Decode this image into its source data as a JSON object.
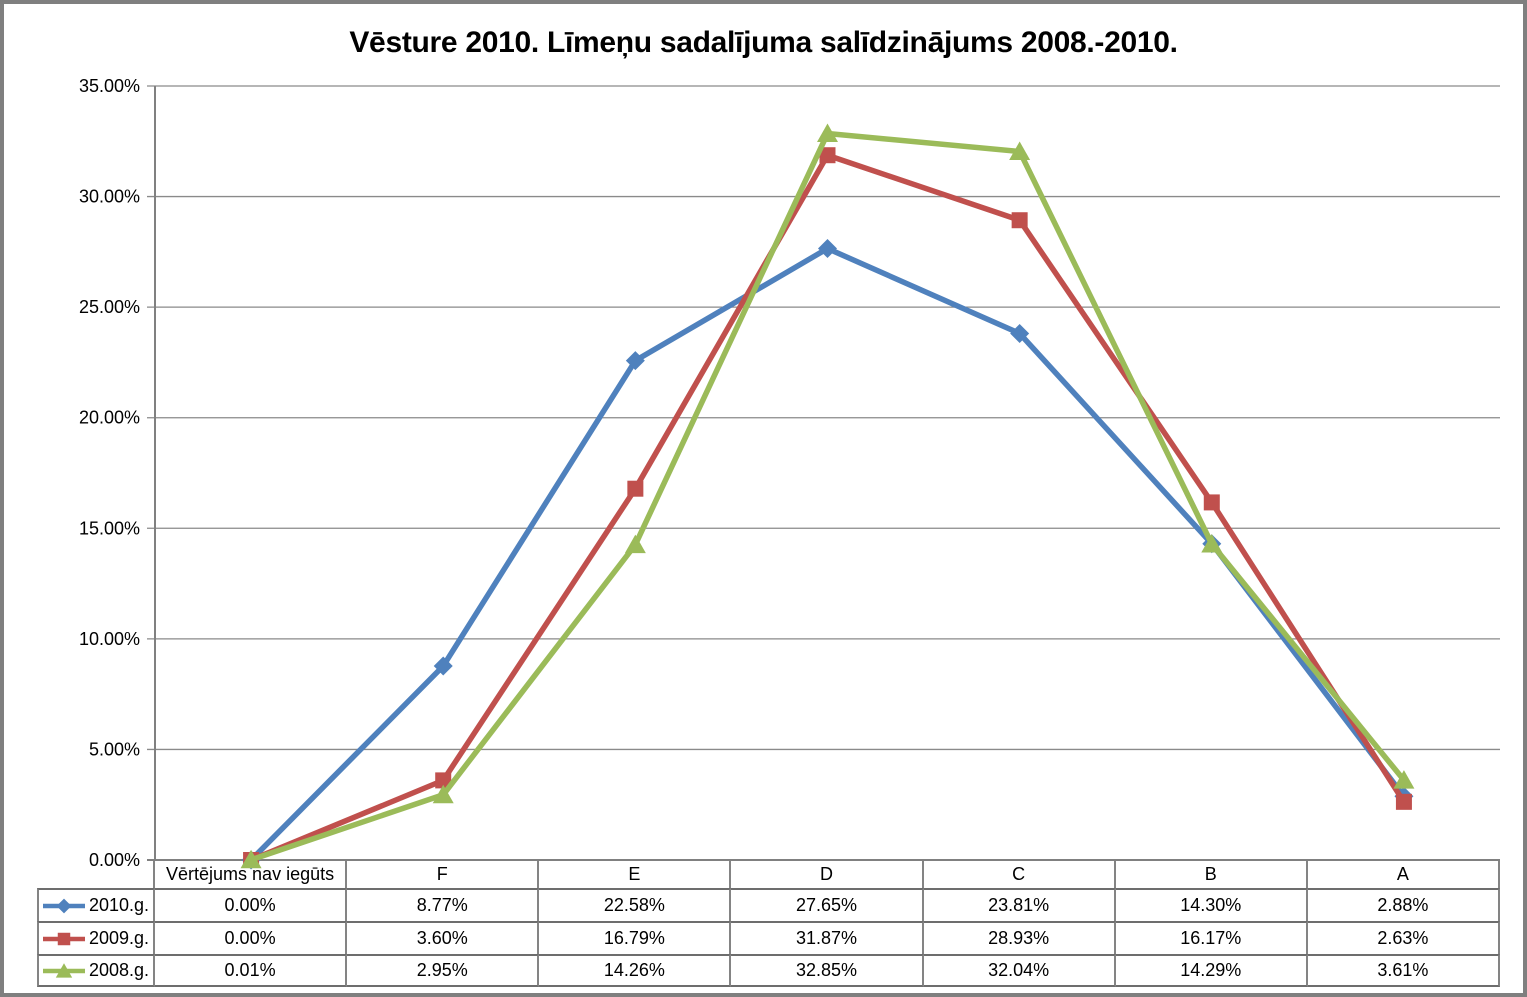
{
  "chart_data": {
    "type": "line",
    "title": "Vēsture 2010. Līmeņu sadalījuma salīdzinājums 2008.-2010.",
    "categories": [
      "Vērtējums nav iegūts",
      "F",
      "E",
      "D",
      "C",
      "B",
      "A"
    ],
    "series": [
      {
        "name": "2010.g.",
        "color": "#4F81BD",
        "marker": "diamond",
        "values": [
          0.0,
          8.77,
          22.58,
          27.65,
          23.81,
          14.3,
          2.88
        ]
      },
      {
        "name": "2009.g.",
        "color": "#C0504D",
        "marker": "square",
        "values": [
          0.0,
          3.6,
          16.79,
          31.87,
          28.93,
          16.17,
          2.63
        ]
      },
      {
        "name": "2008.g.",
        "color": "#9BBB59",
        "marker": "triangle",
        "values": [
          0.01,
          2.95,
          14.26,
          32.85,
          32.04,
          14.29,
          3.61
        ]
      }
    ],
    "xlabel": "",
    "ylabel": "",
    "ylim": [
      0,
      35
    ],
    "ytick_step": 5,
    "ytick_labels": [
      "0.00%",
      "5.00%",
      "10.00%",
      "15.00%",
      "20.00%",
      "25.00%",
      "30.00%",
      "35.00%"
    ],
    "value_suffix": "%",
    "value_decimals": 2,
    "grid": true,
    "vertical_gridlines": false,
    "legend_position": "data-table-left"
  },
  "colors": {
    "outer_border": "#7f7f7f",
    "axis": "#808080",
    "grid": "#8a8a8a",
    "table_border_v": "#848484",
    "table_border_h": "#6d6d6d",
    "text": "#000000"
  }
}
